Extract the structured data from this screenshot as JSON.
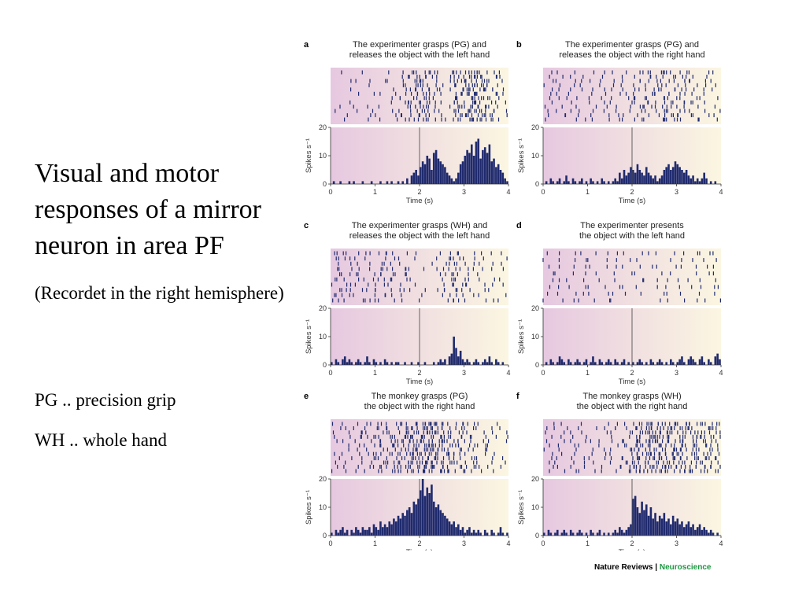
{
  "slide": {
    "title": "Visual and motor responses of a mirror neuron in area PF",
    "note": "(Recordet in the right hemisphere)",
    "abbreviations": [
      {
        "text": "PG .. precision grip"
      },
      {
        "text": "WH .. whole hand"
      }
    ]
  },
  "colors": {
    "gradient_left": "#e6c8e0",
    "gradient_right": "#fbf6e1",
    "spike": "#1f2a6e",
    "credit_green": "#1c9640"
  },
  "credit": {
    "left": "Nature Reviews",
    "separator": "|",
    "right": "Neuroscience"
  },
  "chart_data": [
    {
      "label": "a",
      "type": "bar",
      "title_lines": [
        "The experimenter grasps (PG) and",
        "releases the object with the left hand"
      ],
      "ylabel": "Spikes s⁻¹",
      "xlabel": "Time (s)",
      "xlim": [
        0,
        4
      ],
      "ylim": [
        0,
        20
      ],
      "xticks": [
        0,
        1,
        2,
        3,
        4
      ],
      "yticks": [
        0,
        10,
        20
      ],
      "event_time": 2,
      "raster_trials": 12,
      "histogram": [
        0,
        1,
        0,
        0,
        1,
        0,
        0,
        0,
        1,
        0,
        1,
        0,
        0,
        0,
        1,
        0,
        0,
        0,
        1,
        0,
        0,
        0,
        1,
        0,
        0,
        1,
        0,
        1,
        0,
        0,
        1,
        0,
        1,
        0,
        2,
        0,
        3,
        4,
        5,
        3,
        6,
        8,
        7,
        10,
        9,
        5,
        11,
        12,
        9,
        8,
        7,
        6,
        4,
        3,
        2,
        1,
        2,
        4,
        7,
        8,
        10,
        12,
        11,
        14,
        10,
        15,
        16,
        9,
        12,
        13,
        11,
        14,
        8,
        9,
        6,
        7,
        5,
        4,
        2,
        1
      ],
      "spike_density": [
        0.4,
        0.4,
        0.4,
        0.4,
        0.6,
        0.8,
        1.4,
        2.6,
        3.2,
        1.6,
        0.6,
        3.0,
        4.2,
        3.4,
        2.0,
        1.0
      ]
    },
    {
      "label": "b",
      "type": "bar",
      "title_lines": [
        "The experimenter grasps (PG) and",
        "releases the object with the right hand"
      ],
      "ylabel": "Spikes s⁻¹",
      "xlabel": "Time (s)",
      "xlim": [
        0,
        4
      ],
      "ylim": [
        0,
        20
      ],
      "xticks": [
        0,
        1,
        2,
        3,
        4
      ],
      "yticks": [
        0,
        10,
        20
      ],
      "event_time": 2,
      "raster_trials": 12,
      "histogram": [
        0,
        1,
        0,
        2,
        1,
        0,
        1,
        2,
        0,
        1,
        3,
        1,
        0,
        2,
        1,
        0,
        1,
        2,
        0,
        1,
        0,
        2,
        1,
        0,
        1,
        0,
        2,
        1,
        0,
        1,
        0,
        1,
        2,
        1,
        4,
        2,
        5,
        3,
        4,
        6,
        5,
        4,
        7,
        5,
        4,
        3,
        6,
        4,
        3,
        2,
        3,
        1,
        2,
        3,
        5,
        6,
        7,
        5,
        6,
        8,
        7,
        6,
        5,
        4,
        5,
        3,
        2,
        3,
        1,
        2,
        1,
        2,
        4,
        2,
        0,
        1,
        0,
        1,
        0,
        0
      ],
      "spike_density": [
        0.8,
        0.9,
        1.0,
        0.8,
        0.7,
        0.8,
        0.9,
        1.0,
        1.6,
        1.8,
        2.2,
        1.8,
        2.0,
        1.4,
        0.8,
        0.6
      ]
    },
    {
      "label": "c",
      "type": "bar",
      "title_lines": [
        "The experimenter grasps (WH) and",
        "releases the object with the left hand"
      ],
      "ylabel": "Spikes s⁻¹",
      "xlabel": "Time (s)",
      "xlim": [
        0,
        4
      ],
      "ylim": [
        0,
        20
      ],
      "xticks": [
        0,
        1,
        2,
        3,
        4
      ],
      "yticks": [
        0,
        10,
        20
      ],
      "event_time": 2,
      "raster_trials": 10,
      "histogram": [
        1,
        0,
        2,
        1,
        0,
        2,
        3,
        1,
        2,
        1,
        0,
        1,
        2,
        1,
        0,
        1,
        3,
        1,
        0,
        2,
        1,
        0,
        1,
        0,
        2,
        1,
        0,
        1,
        0,
        1,
        1,
        0,
        0,
        1,
        0,
        0,
        1,
        0,
        0,
        1,
        0,
        0,
        1,
        0,
        0,
        0,
        1,
        0,
        1,
        2,
        1,
        2,
        0,
        3,
        4,
        10,
        6,
        3,
        5,
        2,
        1,
        2,
        1,
        0,
        1,
        2,
        1,
        0,
        1,
        2,
        1,
        3,
        1,
        0,
        2,
        1,
        0,
        1,
        0,
        0
      ],
      "spike_density": [
        1.6,
        1.6,
        1.4,
        1.4,
        1.6,
        1.4,
        1.2,
        0.6,
        0.4,
        0.4,
        1.8,
        2.2,
        1.6,
        1.0,
        0.8,
        0.8
      ]
    },
    {
      "label": "d",
      "type": "bar",
      "title_lines": [
        "The experimenter presents",
        "the object with the left hand"
      ],
      "ylabel": "Spikes s⁻¹",
      "xlabel": "Time (s)",
      "xlim": [
        0,
        4
      ],
      "ylim": [
        0,
        20
      ],
      "xticks": [
        0,
        1,
        2,
        3,
        4
      ],
      "yticks": [
        0,
        10,
        20
      ],
      "event_time": 2,
      "raster_trials": 8,
      "histogram": [
        0,
        1,
        0,
        2,
        1,
        0,
        1,
        3,
        2,
        1,
        0,
        2,
        1,
        0,
        1,
        2,
        1,
        0,
        1,
        2,
        0,
        1,
        3,
        1,
        0,
        2,
        1,
        0,
        1,
        2,
        1,
        0,
        2,
        1,
        0,
        1,
        2,
        0,
        1,
        0,
        1,
        0,
        1,
        2,
        1,
        0,
        1,
        0,
        2,
        1,
        0,
        1,
        2,
        1,
        0,
        1,
        0,
        2,
        1,
        0,
        1,
        2,
        3,
        1,
        0,
        2,
        3,
        2,
        1,
        0,
        2,
        3,
        1,
        0,
        2,
        1,
        0,
        3,
        4,
        2
      ],
      "spike_density": [
        1.0,
        1.0,
        0.8,
        1.0,
        0.8,
        0.8,
        1.0,
        0.8,
        0.8,
        0.6,
        0.8,
        1.0,
        0.8,
        0.8,
        1.0,
        1.2
      ]
    },
    {
      "label": "e",
      "type": "bar",
      "title_lines": [
        "The monkey grasps (PG)",
        "the object with the right hand"
      ],
      "ylabel": "Spikes s⁻¹",
      "xlabel": "Time (s)",
      "xlim": [
        0,
        4
      ],
      "ylim": [
        0,
        20
      ],
      "xticks": [
        0,
        1,
        2,
        3,
        4
      ],
      "yticks": [
        0,
        10,
        20
      ],
      "event_time": 2,
      "raster_trials": 12,
      "histogram": [
        1,
        0,
        2,
        1,
        2,
        3,
        1,
        2,
        0,
        2,
        1,
        3,
        2,
        1,
        3,
        2,
        2,
        3,
        1,
        4,
        3,
        2,
        5,
        3,
        4,
        3,
        5,
        4,
        6,
        5,
        7,
        6,
        8,
        7,
        9,
        10,
        8,
        12,
        11,
        13,
        16,
        20,
        14,
        17,
        15,
        18,
        12,
        10,
        11,
        9,
        8,
        7,
        6,
        5,
        4,
        5,
        3,
        4,
        2,
        3,
        1,
        2,
        3,
        1,
        2,
        1,
        2,
        1,
        0,
        2,
        1,
        0,
        2,
        1,
        0,
        1,
        3,
        1,
        0,
        1
      ],
      "spike_density": [
        0.8,
        1.0,
        1.2,
        1.4,
        1.8,
        2.2,
        2.8,
        3.6,
        4.2,
        4.0,
        3.0,
        2.4,
        1.8,
        1.2,
        1.0,
        0.8
      ]
    },
    {
      "label": "f",
      "type": "bar",
      "title_lines": [
        "The monkey grasps (WH)",
        "the object with the right hand"
      ],
      "ylabel": "Spikes s⁻¹",
      "xlabel": "Time (s)",
      "xlim": [
        0,
        4
      ],
      "ylim": [
        0,
        20
      ],
      "xticks": [
        0,
        1,
        2,
        3,
        4
      ],
      "yticks": [
        0,
        10,
        20
      ],
      "event_time": 2,
      "raster_trials": 12,
      "histogram": [
        1,
        0,
        2,
        1,
        0,
        1,
        2,
        0,
        1,
        2,
        1,
        0,
        2,
        1,
        0,
        1,
        2,
        1,
        0,
        1,
        0,
        2,
        1,
        0,
        1,
        2,
        0,
        1,
        0,
        1,
        0,
        1,
        2,
        1,
        3,
        2,
        1,
        2,
        3,
        4,
        13,
        14,
        10,
        8,
        12,
        9,
        11,
        7,
        10,
        6,
        8,
        5,
        7,
        6,
        8,
        5,
        6,
        4,
        7,
        5,
        6,
        4,
        5,
        3,
        4,
        5,
        3,
        4,
        2,
        3,
        4,
        2,
        3,
        2,
        1,
        2,
        1,
        0,
        1,
        0
      ],
      "spike_density": [
        1.0,
        0.8,
        0.8,
        0.8,
        0.6,
        0.8,
        1.2,
        1.6,
        3.2,
        3.8,
        3.6,
        3.4,
        3.0,
        2.8,
        2.6,
        2.2
      ]
    }
  ]
}
